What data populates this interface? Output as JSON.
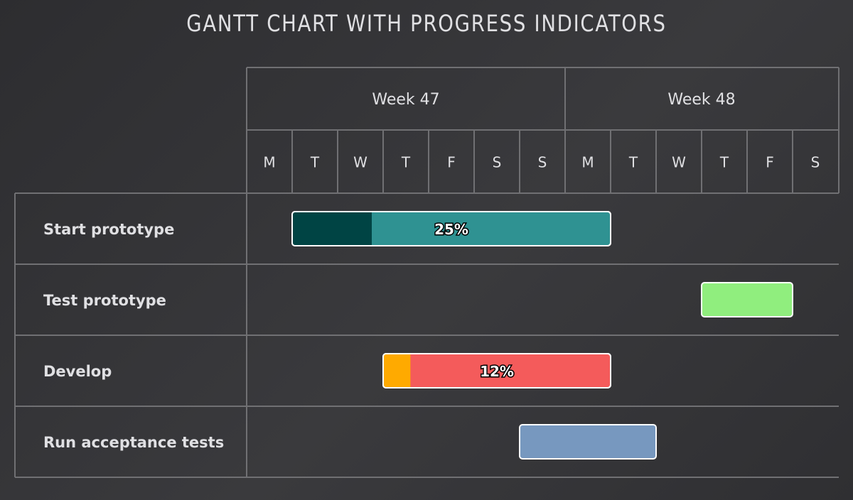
{
  "title": "GANTT CHART WITH PROGRESS INDICATORS",
  "chart_data": {
    "type": "gantt",
    "title": "GANTT CHART WITH PROGRESS INDICATORS",
    "weeks": [
      {
        "label": "Week 47",
        "days": [
          "M",
          "T",
          "W",
          "T",
          "F",
          "S",
          "S"
        ]
      },
      {
        "label": "Week 48",
        "days": [
          "M",
          "T",
          "W",
          "T",
          "F",
          "S"
        ]
      }
    ],
    "tasks": [
      {
        "name": "Start prototype",
        "start": 1,
        "end": 8,
        "completed": 0.25,
        "completed_label": "25%",
        "color": "#2f9292",
        "completed_color": "#004444"
      },
      {
        "name": "Test prototype",
        "start": 10,
        "end": 12,
        "completed": null,
        "completed_label": "",
        "color": "#90ee7e",
        "completed_color": ""
      },
      {
        "name": "Develop",
        "start": 3,
        "end": 8,
        "completed": 0.12,
        "completed_label": "12%",
        "color": "#f45b5b",
        "completed_color": "#ffaa00"
      },
      {
        "name": "Run acceptance tests",
        "start": 6,
        "end": 9,
        "completed": null,
        "completed_label": "",
        "color": "#7798bf",
        "completed_color": ""
      }
    ]
  }
}
